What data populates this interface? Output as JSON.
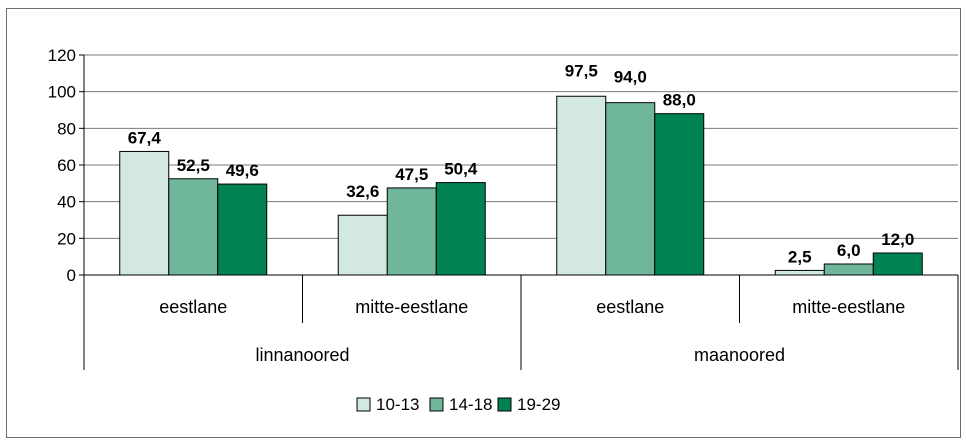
{
  "chart_data": {
    "type": "bar",
    "categories": [
      "eestlane",
      "mitte-eestlane",
      "eestlane",
      "mitte-eestlane"
    ],
    "groups": [
      {
        "label": "linnanoored",
        "categories": [
          "eestlane",
          "mitte-eestlane"
        ]
      },
      {
        "label": "maanoored",
        "categories": [
          "eestlane",
          "mitte-eestlane"
        ]
      }
    ],
    "series": [
      {
        "name": "10-13",
        "color": "#d3e8e0",
        "values": [
          67.4,
          32.6,
          97.5,
          2.5
        ],
        "labels": [
          "67,4",
          "32,6",
          "97,5",
          "2,5"
        ]
      },
      {
        "name": "14-18",
        "color": "#70b69b",
        "values": [
          52.5,
          47.5,
          94.0,
          6.0
        ],
        "labels": [
          "52,5",
          "47,5",
          "94,0",
          "6,0"
        ]
      },
      {
        "name": "19-29",
        "color": "#008252",
        "values": [
          49.6,
          50.4,
          88.0,
          12.0
        ],
        "labels": [
          "49,6",
          "50,4",
          "88,0",
          "12,0"
        ]
      }
    ],
    "ylim": [
      0,
      120
    ],
    "yticks": [
      0,
      20,
      40,
      60,
      80,
      100,
      120
    ],
    "grid": true,
    "legend": "bottom",
    "title": "",
    "xlabel": "",
    "ylabel": ""
  }
}
